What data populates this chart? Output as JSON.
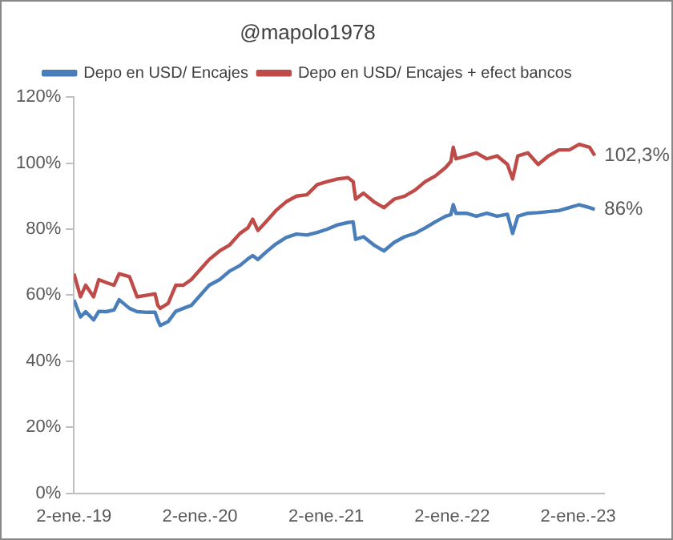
{
  "chart_data": {
    "type": "line",
    "title": "@mapolo1978",
    "x": [
      "2019-01-02",
      "2019-01-21",
      "2019-02-05",
      "2019-02-28",
      "2019-03-15",
      "2019-04-06",
      "2019-04-28",
      "2019-05-13",
      "2019-06-12",
      "2019-07-04",
      "2019-08-03",
      "2019-08-25",
      "2019-09-02",
      "2019-09-09",
      "2019-10-02",
      "2019-10-24",
      "2019-11-15",
      "2019-12-08",
      "2019-12-30",
      "2020-01-29",
      "2020-02-28",
      "2020-03-28",
      "2020-04-27",
      "2020-05-20",
      "2020-06-03",
      "2020-06-18",
      "2020-07-11",
      "2020-08-09",
      "2020-09-08",
      "2020-10-08",
      "2020-11-07",
      "2020-12-07",
      "2021-01-05",
      "2021-02-04",
      "2021-03-06",
      "2021-03-21",
      "2021-03-28",
      "2021-04-20",
      "2021-05-20",
      "2021-06-18",
      "2021-07-18",
      "2021-08-17",
      "2021-09-16",
      "2021-10-16",
      "2021-11-14",
      "2021-12-14",
      "2021-12-29",
      "2022-01-05",
      "2022-01-13",
      "2022-02-12",
      "2022-03-13",
      "2022-04-12",
      "2022-05-12",
      "2022-06-11",
      "2022-06-26",
      "2022-07-11",
      "2022-08-09",
      "2022-09-08",
      "2022-10-08",
      "2022-11-07",
      "2022-12-07",
      "2023-01-05",
      "2023-02-04",
      "2023-02-19"
    ],
    "series": [
      {
        "name": "Depo en USD/ Encajes",
        "color": "#4a7ebb",
        "values": [
          58.6,
          53.4,
          55,
          52.5,
          55.1,
          55,
          55.5,
          58.6,
          56,
          55,
          54.8,
          54.8,
          52.5,
          50.8,
          52,
          55.1,
          56,
          56.9,
          59.5,
          63,
          64.7,
          67.3,
          69,
          71,
          72,
          70.8,
          73,
          75.5,
          77.5,
          78.5,
          78.2,
          79,
          80,
          81.3,
          82,
          82.2,
          76.9,
          77.7,
          75.2,
          73.4,
          76,
          77.7,
          78.7,
          80.4,
          82.2,
          83.9,
          84.4,
          87.4,
          84.8,
          84.8,
          83.9,
          84.8,
          83.9,
          84.5,
          78.7,
          83.9,
          84.8,
          85,
          85.3,
          85.6,
          86.5,
          87.4,
          86.5,
          86
        ]
      },
      {
        "name": "Depo en USD/ Encajes + efect bancos",
        "color": "#be4b48",
        "values": [
          66.5,
          59.5,
          63,
          59.5,
          64.7,
          63.8,
          63,
          66.5,
          65.6,
          59.5,
          60,
          60.4,
          56.9,
          56,
          57.5,
          63,
          63,
          64.7,
          67.3,
          70.8,
          73.4,
          75.2,
          78.7,
          80.4,
          83,
          79.6,
          82.2,
          85.6,
          88.3,
          90,
          90.4,
          93.5,
          94.4,
          95.2,
          95.6,
          94.4,
          89.1,
          90.9,
          88.3,
          86.5,
          89.1,
          90,
          91.8,
          94.4,
          96.1,
          98.7,
          100.5,
          104.8,
          101.3,
          102.2,
          103.1,
          101.3,
          102.2,
          99.6,
          95.2,
          102.2,
          103.1,
          99.6,
          102.2,
          104,
          104,
          105.7,
          104.8,
          102.3
        ]
      }
    ],
    "annotations": [
      {
        "text": "102,3%",
        "x": "2023-02-19",
        "y": 102.3
      },
      {
        "text": "86%",
        "x": "2023-02-19",
        "y": 86
      }
    ],
    "xlim": [
      "2019-01-02",
      "2023-03-18"
    ],
    "xticks": [
      {
        "value": "2019-01-02",
        "label": "2-ene.-19"
      },
      {
        "value": "2020-01-02",
        "label": "2-ene.-20"
      },
      {
        "value": "2021-01-02",
        "label": "2-ene.-21"
      },
      {
        "value": "2022-01-02",
        "label": "2-ene.-22"
      },
      {
        "value": "2023-01-02",
        "label": "2-ene.-23"
      }
    ],
    "ylim": [
      0,
      120
    ],
    "yticks": [
      {
        "value": 0,
        "label": "0%"
      },
      {
        "value": 20,
        "label": "20%"
      },
      {
        "value": 40,
        "label": "40%"
      },
      {
        "value": 60,
        "label": "60%"
      },
      {
        "value": 80,
        "label": "80%"
      },
      {
        "value": 100,
        "label": "100%"
      },
      {
        "value": 120,
        "label": "120%"
      }
    ],
    "grid": false,
    "legend": "top",
    "marker": "none",
    "line_style": "solid"
  }
}
